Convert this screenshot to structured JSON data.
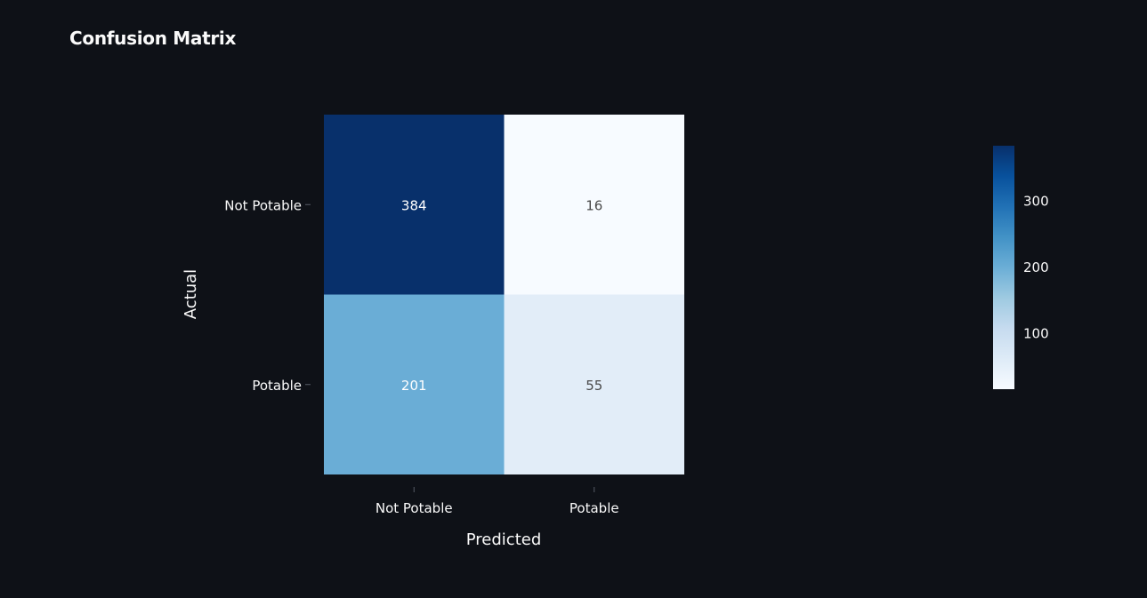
{
  "title": "Confusion Matrix",
  "chart_data": {
    "type": "heatmap",
    "title": "Confusion Matrix",
    "xlabel": "Predicted",
    "ylabel": "Actual",
    "x_categories": [
      "Not Potable",
      "Potable"
    ],
    "y_categories": [
      "Not Potable",
      "Potable"
    ],
    "values": [
      [
        384,
        16
      ],
      [
        201,
        55
      ]
    ],
    "colorscale": "Blues",
    "colorbar": {
      "ticks": [
        100,
        200,
        300
      ],
      "range": [
        16,
        384
      ]
    },
    "colors": {
      "background": "#0e1117",
      "text": "#fafafa"
    }
  }
}
